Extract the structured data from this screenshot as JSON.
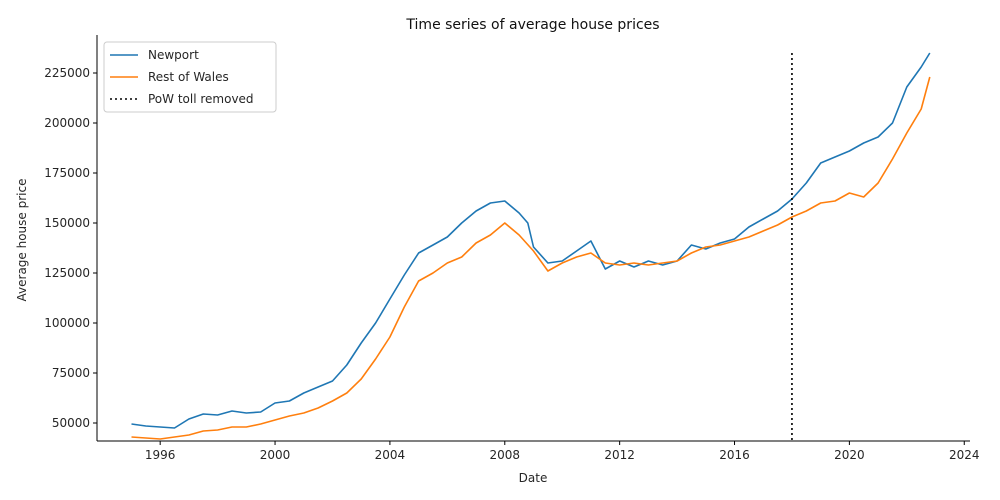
{
  "chart_data": {
    "type": "line",
    "title": "Time series of average house prices",
    "xlabel": "Date",
    "ylabel": "Average house price",
    "xlim": [
      1993.8,
      2024.2
    ],
    "ylim": [
      41000,
      244000
    ],
    "x_ticks": [
      1996,
      2000,
      2004,
      2008,
      2012,
      2016,
      2020,
      2024
    ],
    "y_ticks": [
      50000,
      75000,
      100000,
      125000,
      150000,
      175000,
      200000,
      225000
    ],
    "grid": false,
    "legend_position": "upper-left",
    "series": [
      {
        "name": "Newport",
        "color": "#1f77b4",
        "x": [
          1995.0,
          1995.5,
          1996.0,
          1996.5,
          1997.0,
          1997.5,
          1998.0,
          1998.5,
          1999.0,
          1999.5,
          2000.0,
          2000.5,
          2001.0,
          2001.5,
          2002.0,
          2002.5,
          2003.0,
          2003.5,
          2004.0,
          2004.5,
          2005.0,
          2005.5,
          2006.0,
          2006.5,
          2007.0,
          2007.5,
          2008.0,
          2008.5,
          2008.8,
          2009.0,
          2009.5,
          2010.0,
          2010.5,
          2011.0,
          2011.5,
          2012.0,
          2012.5,
          2013.0,
          2013.5,
          2014.0,
          2014.5,
          2015.0,
          2015.5,
          2016.0,
          2016.5,
          2017.0,
          2017.5,
          2018.0,
          2018.5,
          2019.0,
          2019.5,
          2020.0,
          2020.5,
          2021.0,
          2021.5,
          2022.0,
          2022.5,
          2022.8
        ],
        "values": [
          49500,
          48500,
          48000,
          47500,
          52000,
          54500,
          54000,
          56000,
          55000,
          55500,
          60000,
          61000,
          65000,
          68000,
          71000,
          79000,
          90000,
          100000,
          112000,
          124000,
          135000,
          139000,
          143000,
          150000,
          156000,
          160000,
          161000,
          155000,
          150000,
          138000,
          130000,
          131000,
          136000,
          141000,
          127000,
          131000,
          128000,
          131000,
          129000,
          131000,
          139000,
          137000,
          140000,
          142000,
          148000,
          152000,
          156000,
          162000,
          170000,
          180000,
          183000,
          186000,
          190000,
          193000,
          200000,
          218000,
          228000,
          235000
        ]
      },
      {
        "name": "Rest of Wales",
        "color": "#ff7f0e",
        "x": [
          1995.0,
          1995.5,
          1996.0,
          1996.5,
          1997.0,
          1997.5,
          1998.0,
          1998.5,
          1999.0,
          1999.5,
          2000.0,
          2000.5,
          2001.0,
          2001.5,
          2002.0,
          2002.5,
          2003.0,
          2003.5,
          2004.0,
          2004.5,
          2005.0,
          2005.5,
          2006.0,
          2006.5,
          2007.0,
          2007.5,
          2008.0,
          2008.5,
          2009.0,
          2009.5,
          2010.0,
          2010.5,
          2011.0,
          2011.5,
          2012.0,
          2012.5,
          2013.0,
          2013.5,
          2014.0,
          2014.5,
          2015.0,
          2015.5,
          2016.0,
          2016.5,
          2017.0,
          2017.5,
          2018.0,
          2018.5,
          2019.0,
          2019.5,
          2020.0,
          2020.5,
          2021.0,
          2021.5,
          2022.0,
          2022.5,
          2022.8
        ],
        "values": [
          43000,
          42500,
          42000,
          43000,
          44000,
          46000,
          46500,
          48000,
          48000,
          49500,
          51500,
          53500,
          55000,
          57500,
          61000,
          65000,
          72000,
          82000,
          93000,
          108000,
          121000,
          125000,
          130000,
          133000,
          140000,
          144000,
          150000,
          144000,
          136000,
          126000,
          130000,
          133000,
          135000,
          130000,
          129000,
          130000,
          129000,
          130000,
          131000,
          135000,
          138000,
          139000,
          141000,
          143000,
          146000,
          149000,
          153000,
          156000,
          160000,
          161000,
          165000,
          163000,
          170000,
          182000,
          195000,
          207000,
          223000
        ]
      },
      {
        "name": "PoW toll removed",
        "color": "#000000",
        "style": "dotted",
        "type": "vline",
        "x": 2018.0,
        "y_range": [
          41500,
          235000
        ]
      }
    ]
  }
}
